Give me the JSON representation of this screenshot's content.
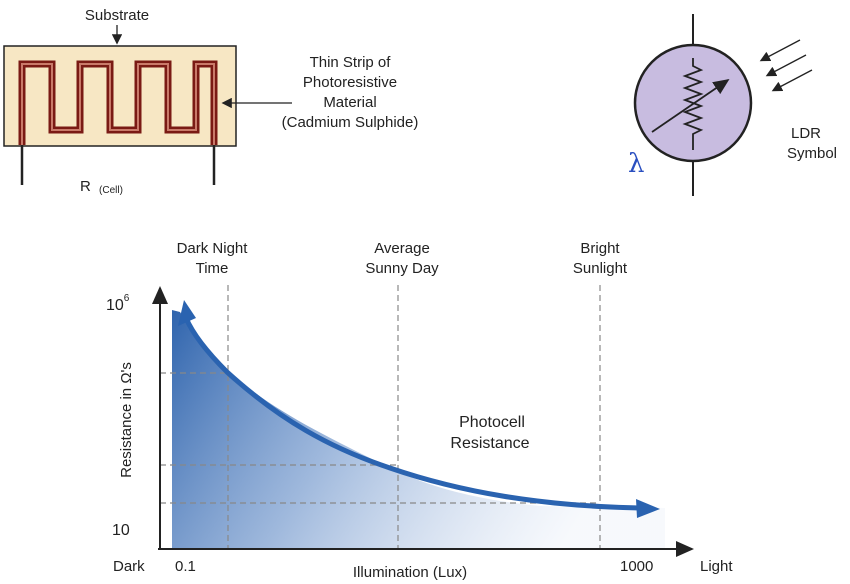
{
  "cell": {
    "substrate_label": "Substrate",
    "strip_label": [
      "Thin Strip of",
      "Photoresistive",
      "Material",
      "(Cadmium Sulphide)"
    ],
    "r_label": "R",
    "r_sub": "(Cell)"
  },
  "symbol": {
    "label": [
      "LDR",
      "Symbol"
    ],
    "lambda": "λ"
  },
  "chart": {
    "ylabel": "Resistance in Ω's",
    "y_top_base": "10",
    "y_top_exp": "6",
    "y_bottom": "10",
    "x_left_word": "Dark",
    "x_right_word": "Light",
    "x_min": "0.1",
    "x_max": "1000",
    "xlabel": "Illumination (Lux)",
    "markers": [
      {
        "line1": "Dark Night",
        "line2": "Time"
      },
      {
        "line1": "Average",
        "line2": "Sunny Day"
      },
      {
        "line1": "Bright",
        "line2": "Sunlight"
      }
    ],
    "curve_label": [
      "Photocell",
      "Resistance"
    ]
  },
  "colors": {
    "strip": "#7a1a14",
    "substrate": "#f7e7c4",
    "ldr_fill": "#c8bce0",
    "curve": "#2a63b0",
    "area": "#3a6fb5"
  }
}
